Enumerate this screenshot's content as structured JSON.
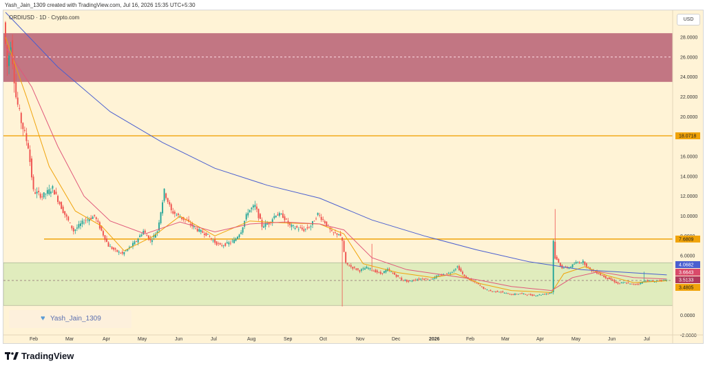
{
  "caption": "Yash_Jain_1309 created with TradingView.com, Jul 16, 2026 15:35 UTC+5:30",
  "symbol": "ORDIUSD · 1D · Crypto.com",
  "currency": "USD",
  "watermark": "Yash_Jain_1309",
  "brand": "TradingView",
  "colors": {
    "background": "#fff3d6",
    "up": "#26a69a",
    "down": "#ef5350",
    "zone_red": "#bf6f7e",
    "zone_green": "#d6e9b4",
    "level": "#f0a30a",
    "ma_fast": "#f0a30a",
    "ma_mid": "#e0587a",
    "ma_slow": "#4a5fd0"
  },
  "chart_data": {
    "type": "candlestick",
    "y_scale": "linear",
    "ylim": [
      -2.8,
      30.7
    ],
    "ytick_labels": [
      "28.0000",
      "26.0000",
      "24.0000",
      "22.0000",
      "20.0000",
      "16.0000",
      "14.0000",
      "12.0000",
      "10.0000",
      "8.0000",
      "6.0000",
      "0.0000",
      "-2.0000"
    ],
    "ytick_values": [
      28,
      26,
      24,
      22,
      20,
      16,
      14,
      12,
      10,
      8,
      6,
      0,
      -2
    ],
    "xtick_labels": [
      "Feb",
      "Mar",
      "Apr",
      "May",
      "Jun",
      "Jul",
      "Aug",
      "Sep",
      "Oct",
      "Nov",
      "Dec",
      "2026",
      "Feb",
      "Mar",
      "Apr",
      "May",
      "Jun",
      "Jul"
    ],
    "xtick_bold": [
      "2026"
    ],
    "zones": [
      {
        "name": "resistance",
        "from": 23.5,
        "to": 28.4,
        "color": "#bf6f7e",
        "midline": 26.0
      },
      {
        "name": "support",
        "from": 1.0,
        "to": 5.3,
        "color": "#d6e9b4"
      }
    ],
    "levels": [
      {
        "value": 18.0718,
        "label": "18.0718",
        "color": "#f0a30a"
      },
      {
        "value": 7.6809,
        "label": "7.6809",
        "color": "#f0a30a"
      }
    ],
    "dashed_lines": [
      3.5133
    ],
    "price_tags": [
      {
        "value": 4.0682,
        "label": "4.0682",
        "color": "#4a5fd0"
      },
      {
        "value": 3.6643,
        "label": "3.6643",
        "color": "#d94a6a"
      },
      {
        "value": 3.5133,
        "label": "3.5133",
        "color": "#b03a5c"
      },
      {
        "value": 3.4805,
        "label": "3.4805",
        "color": "#f0a30a"
      }
    ],
    "price_path": [
      [
        0,
        29.5
      ],
      [
        2,
        25
      ],
      [
        4,
        27.5
      ],
      [
        7,
        22
      ],
      [
        10,
        19.5
      ],
      [
        14,
        17
      ],
      [
        17,
        12.5
      ],
      [
        22,
        12
      ],
      [
        28,
        12.8
      ],
      [
        34,
        10.5
      ],
      [
        40,
        8.5
      ],
      [
        46,
        9.5
      ],
      [
        52,
        10
      ],
      [
        56,
        8.5
      ],
      [
        60,
        7
      ],
      [
        64,
        6.5
      ],
      [
        68,
        6.2
      ],
      [
        72,
        6.8
      ],
      [
        76,
        7.5
      ],
      [
        80,
        8.5
      ],
      [
        84,
        7.5
      ],
      [
        88,
        8.5
      ],
      [
        92,
        12.5
      ],
      [
        96,
        10.5
      ],
      [
        100,
        10
      ],
      [
        104,
        9.6
      ],
      [
        108,
        9
      ],
      [
        112,
        8.5
      ],
      [
        116,
        8.2
      ],
      [
        120,
        7.5
      ],
      [
        124,
        7
      ],
      [
        128,
        7.2
      ],
      [
        132,
        7.5
      ],
      [
        136,
        8.5
      ],
      [
        140,
        10.5
      ],
      [
        144,
        11
      ],
      [
        148,
        9
      ],
      [
        152,
        9.3
      ],
      [
        156,
        10.2
      ],
      [
        160,
        10
      ],
      [
        164,
        9
      ],
      [
        168,
        8.8
      ],
      [
        172,
        8.6
      ],
      [
        176,
        9
      ],
      [
        180,
        10.2
      ],
      [
        184,
        9.4
      ],
      [
        188,
        8.3
      ],
      [
        192,
        8.2
      ],
      [
        194,
        7.5
      ],
      [
        196,
        5.2
      ],
      [
        200,
        4.8
      ],
      [
        204,
        4.5
      ],
      [
        208,
        4.8
      ],
      [
        212,
        4.5
      ],
      [
        216,
        4.2
      ],
      [
        220,
        4.6
      ],
      [
        224,
        4.1
      ],
      [
        228,
        3.6
      ],
      [
        232,
        3.4
      ],
      [
        236,
        3.6
      ],
      [
        240,
        3.7
      ],
      [
        244,
        3.6
      ],
      [
        248,
        3.9
      ],
      [
        252,
        4.1
      ],
      [
        256,
        4.3
      ],
      [
        260,
        4.9
      ],
      [
        264,
        3.9
      ],
      [
        268,
        3.5
      ],
      [
        272,
        3.1
      ],
      [
        276,
        2.6
      ],
      [
        280,
        2.4
      ],
      [
        284,
        2.4
      ],
      [
        288,
        2.2
      ],
      [
        292,
        2.1
      ],
      [
        296,
        2.2
      ],
      [
        300,
        2.1
      ],
      [
        304,
        2.0
      ],
      [
        308,
        2.1
      ],
      [
        312,
        2.2
      ],
      [
        314,
        2.4
      ],
      [
        315,
        7.5
      ],
      [
        316,
        5.8
      ],
      [
        320,
        4.8
      ],
      [
        324,
        4.8
      ],
      [
        328,
        5.3
      ],
      [
        332,
        5.4
      ],
      [
        336,
        4.6
      ],
      [
        340,
        4.3
      ],
      [
        344,
        3.9
      ],
      [
        348,
        3.6
      ],
      [
        352,
        3.2
      ],
      [
        356,
        3.3
      ],
      [
        360,
        3.1
      ],
      [
        364,
        3.2
      ],
      [
        368,
        3.5
      ],
      [
        372,
        3.4
      ],
      [
        376,
        3.5
      ],
      [
        379,
        3.51
      ]
    ],
    "spikes": [
      {
        "day": 315,
        "high": 10.7
      },
      {
        "day": 193,
        "low": 0.9
      },
      {
        "day": 210,
        "high": 7.2
      },
      {
        "day": 366,
        "high": 4.4
      }
    ],
    "series": [
      {
        "name": "MA fast",
        "values": [
          [
            0,
            28
          ],
          [
            12,
            22
          ],
          [
            25,
            15
          ],
          [
            40,
            10.5
          ],
          [
            55,
            9
          ],
          [
            68,
            6.5
          ],
          [
            85,
            8
          ],
          [
            100,
            10
          ],
          [
            120,
            8
          ],
          [
            140,
            9.5
          ],
          [
            160,
            9.3
          ],
          [
            180,
            9.2
          ],
          [
            194,
            8.2
          ],
          [
            205,
            5.2
          ],
          [
            225,
            4.3
          ],
          [
            245,
            3.8
          ],
          [
            258,
            4.2
          ],
          [
            272,
            3.2
          ],
          [
            290,
            2.5
          ],
          [
            313,
            2.3
          ],
          [
            320,
            4.2
          ],
          [
            332,
            4.9
          ],
          [
            345,
            4.0
          ],
          [
            360,
            3.3
          ],
          [
            379,
            3.48
          ]
        ]
      },
      {
        "name": "MA mid",
        "values": [
          [
            0,
            27
          ],
          [
            15,
            23
          ],
          [
            30,
            17
          ],
          [
            45,
            12
          ],
          [
            60,
            9.5
          ],
          [
            80,
            8.2
          ],
          [
            100,
            9.4
          ],
          [
            120,
            8.4
          ],
          [
            140,
            9.2
          ],
          [
            160,
            9.4
          ],
          [
            180,
            9.2
          ],
          [
            194,
            8.6
          ],
          [
            210,
            5.8
          ],
          [
            230,
            4.6
          ],
          [
            250,
            4.1
          ],
          [
            270,
            3.6
          ],
          [
            290,
            2.9
          ],
          [
            313,
            2.5
          ],
          [
            325,
            3.8
          ],
          [
            340,
            4.4
          ],
          [
            360,
            3.8
          ],
          [
            379,
            3.66
          ]
        ]
      },
      {
        "name": "MA slow",
        "values": [
          [
            0,
            30.5
          ],
          [
            30,
            25
          ],
          [
            60,
            20.5
          ],
          [
            90,
            17.4
          ],
          [
            120,
            14.8
          ],
          [
            150,
            13.1
          ],
          [
            180,
            11.8
          ],
          [
            210,
            9.6
          ],
          [
            240,
            8.0
          ],
          [
            270,
            6.6
          ],
          [
            300,
            5.4
          ],
          [
            330,
            4.6
          ],
          [
            379,
            4.07
          ]
        ]
      }
    ]
  }
}
